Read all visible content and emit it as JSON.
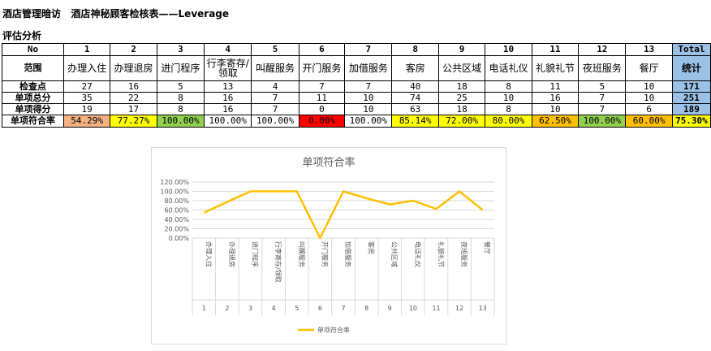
{
  "header": {
    "title": "酒店管理暗访   酒店神秘顾客检核表——Leverage",
    "subtitle": "评估分析"
  },
  "table": {
    "row_labels": {
      "no": "No",
      "category": "范围",
      "checkpoints": "检查点",
      "total": "单项总分",
      "score": "单项得分",
      "rate": "单项符合率"
    },
    "numbers": [
      "1",
      "2",
      "3",
      "4",
      "5",
      "6",
      "7",
      "8",
      "9",
      "10",
      "11",
      "12",
      "13"
    ],
    "total_header": "Total",
    "categories": [
      "办理入住",
      "办理退房",
      "进门程序",
      "行李寄存/领取",
      "叫醒服务",
      "开门服务",
      "加借服务",
      "客房",
      "公共区域",
      "电话礼仪",
      "礼貌礼节",
      "夜班服务",
      "餐厅"
    ],
    "total_category": "统计",
    "checkpoints": [
      "27",
      "16",
      "5",
      "13",
      "4",
      "7",
      "7",
      "40",
      "18",
      "8",
      "11",
      "5",
      "10"
    ],
    "checkpoints_total": "171",
    "totals": [
      "35",
      "22",
      "8",
      "16",
      "7",
      "11",
      "10",
      "74",
      "25",
      "10",
      "16",
      "7",
      "10"
    ],
    "totals_total": "251",
    "scores": [
      "19",
      "17",
      "8",
      "16",
      "7",
      "0",
      "10",
      "63",
      "18",
      "8",
      "10",
      "7",
      "6"
    ],
    "scores_total": "189",
    "rates": [
      "54.29%",
      "77.27%",
      "100.00%",
      "100.00%",
      "100.00%",
      "0.00%",
      "100.00%",
      "85.14%",
      "72.00%",
      "80.00%",
      "62.50%",
      "100.00%",
      "60.00%"
    ],
    "rates_total": "75.30%",
    "rate_colors": [
      "#f4b183",
      "#ffff00",
      "#92d050",
      "#ffffff",
      "#ffffff",
      "#ff0000",
      "#ffffff",
      "#ffff00",
      "#ffff00",
      "#ffff00",
      "#ffc000",
      "#92d050",
      "#ffc000"
    ],
    "rate_total_color": "#ffff00"
  },
  "chart_data": {
    "type": "line",
    "title": "单项符合率",
    "categories": [
      "办理入住",
      "办理退房",
      "进门程序",
      "行李寄存/领取",
      "叫醒服务",
      "开门服务",
      "加借服务",
      "客房",
      "公共区域",
      "电话礼仪",
      "礼貌礼节",
      "夜班服务",
      "餐厅"
    ],
    "category_numbers": [
      "1",
      "2",
      "3",
      "4",
      "5",
      "6",
      "7",
      "8",
      "9",
      "10",
      "11",
      "12",
      "13"
    ],
    "series": [
      {
        "name": "单项符合率",
        "values": [
          54.29,
          77.27,
          100,
          100,
          100,
          0,
          100,
          85.14,
          72.0,
          80.0,
          62.5,
          100,
          60.0
        ],
        "color": "#ffc000"
      }
    ],
    "ylim": [
      0,
      120
    ],
    "yticks": [
      "0.00%",
      "20.00%",
      "40.00%",
      "60.00%",
      "80.00%",
      "100.00%",
      "120.00%"
    ],
    "grid": true,
    "legend": "bottom"
  }
}
